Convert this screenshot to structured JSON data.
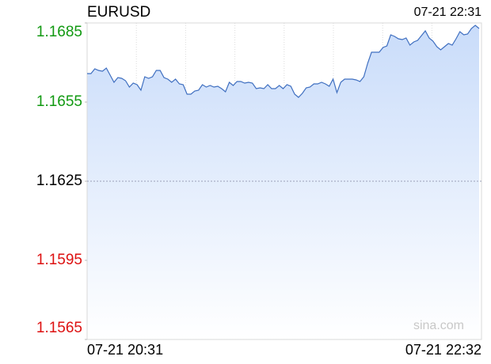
{
  "chart_data": {
    "type": "line",
    "title": "EURUSD",
    "timestamp": "07-21 22:31",
    "watermark": "sina.com",
    "x_labels": [
      "07-21 20:31",
      "07-21 22:32"
    ],
    "color": "#3f6fc0",
    "ylim": [
      1.1565,
      1.1685
    ],
    "yticks": [
      1.1565,
      1.1595,
      1.1625,
      1.1655,
      1.1685
    ],
    "ytick_colors": [
      "#dd1111",
      "#dd1111",
      "#000000",
      "#119911",
      "#119911"
    ],
    "ref_line": 1.1625,
    "values": [
      1.16658,
      1.16658,
      1.16676,
      1.1667,
      1.16667,
      1.16679,
      1.16652,
      1.16625,
      1.16643,
      1.1664,
      1.16631,
      1.16607,
      1.16622,
      1.16616,
      1.16595,
      1.16646,
      1.1664,
      1.16646,
      1.1667,
      1.1667,
      1.16643,
      1.16637,
      1.16625,
      1.16637,
      1.16619,
      1.16616,
      1.1658,
      1.1658,
      1.16592,
      1.16595,
      1.16616,
      1.16607,
      1.16613,
      1.16607,
      1.1661,
      1.16601,
      1.16589,
      1.16625,
      1.16613,
      1.16628,
      1.16628,
      1.16622,
      1.16625,
      1.16622,
      1.16601,
      1.16604,
      1.16601,
      1.16616,
      1.16601,
      1.16601,
      1.16613,
      1.16601,
      1.16616,
      1.1661,
      1.1658,
      1.16568,
      1.16583,
      1.16604,
      1.16607,
      1.16619,
      1.16619,
      1.16625,
      1.16619,
      1.1661,
      1.16637,
      1.16586,
      1.16625,
      1.16637,
      1.16637,
      1.16637,
      1.16634,
      1.16628,
      1.16646,
      1.16697,
      1.16739,
      1.16739,
      1.16739,
      1.16757,
      1.16763,
      1.16805,
      1.16799,
      1.1679,
      1.16787,
      1.16793,
      1.16766,
      1.16778,
      1.16784,
      1.16802,
      1.1682,
      1.16793,
      1.16781,
      1.1676,
      1.16748,
      1.1676,
      1.16772,
      1.16766,
      1.1679,
      1.16817,
      1.16805,
      1.16808,
      1.16829,
      1.16841,
      1.16829
    ]
  }
}
